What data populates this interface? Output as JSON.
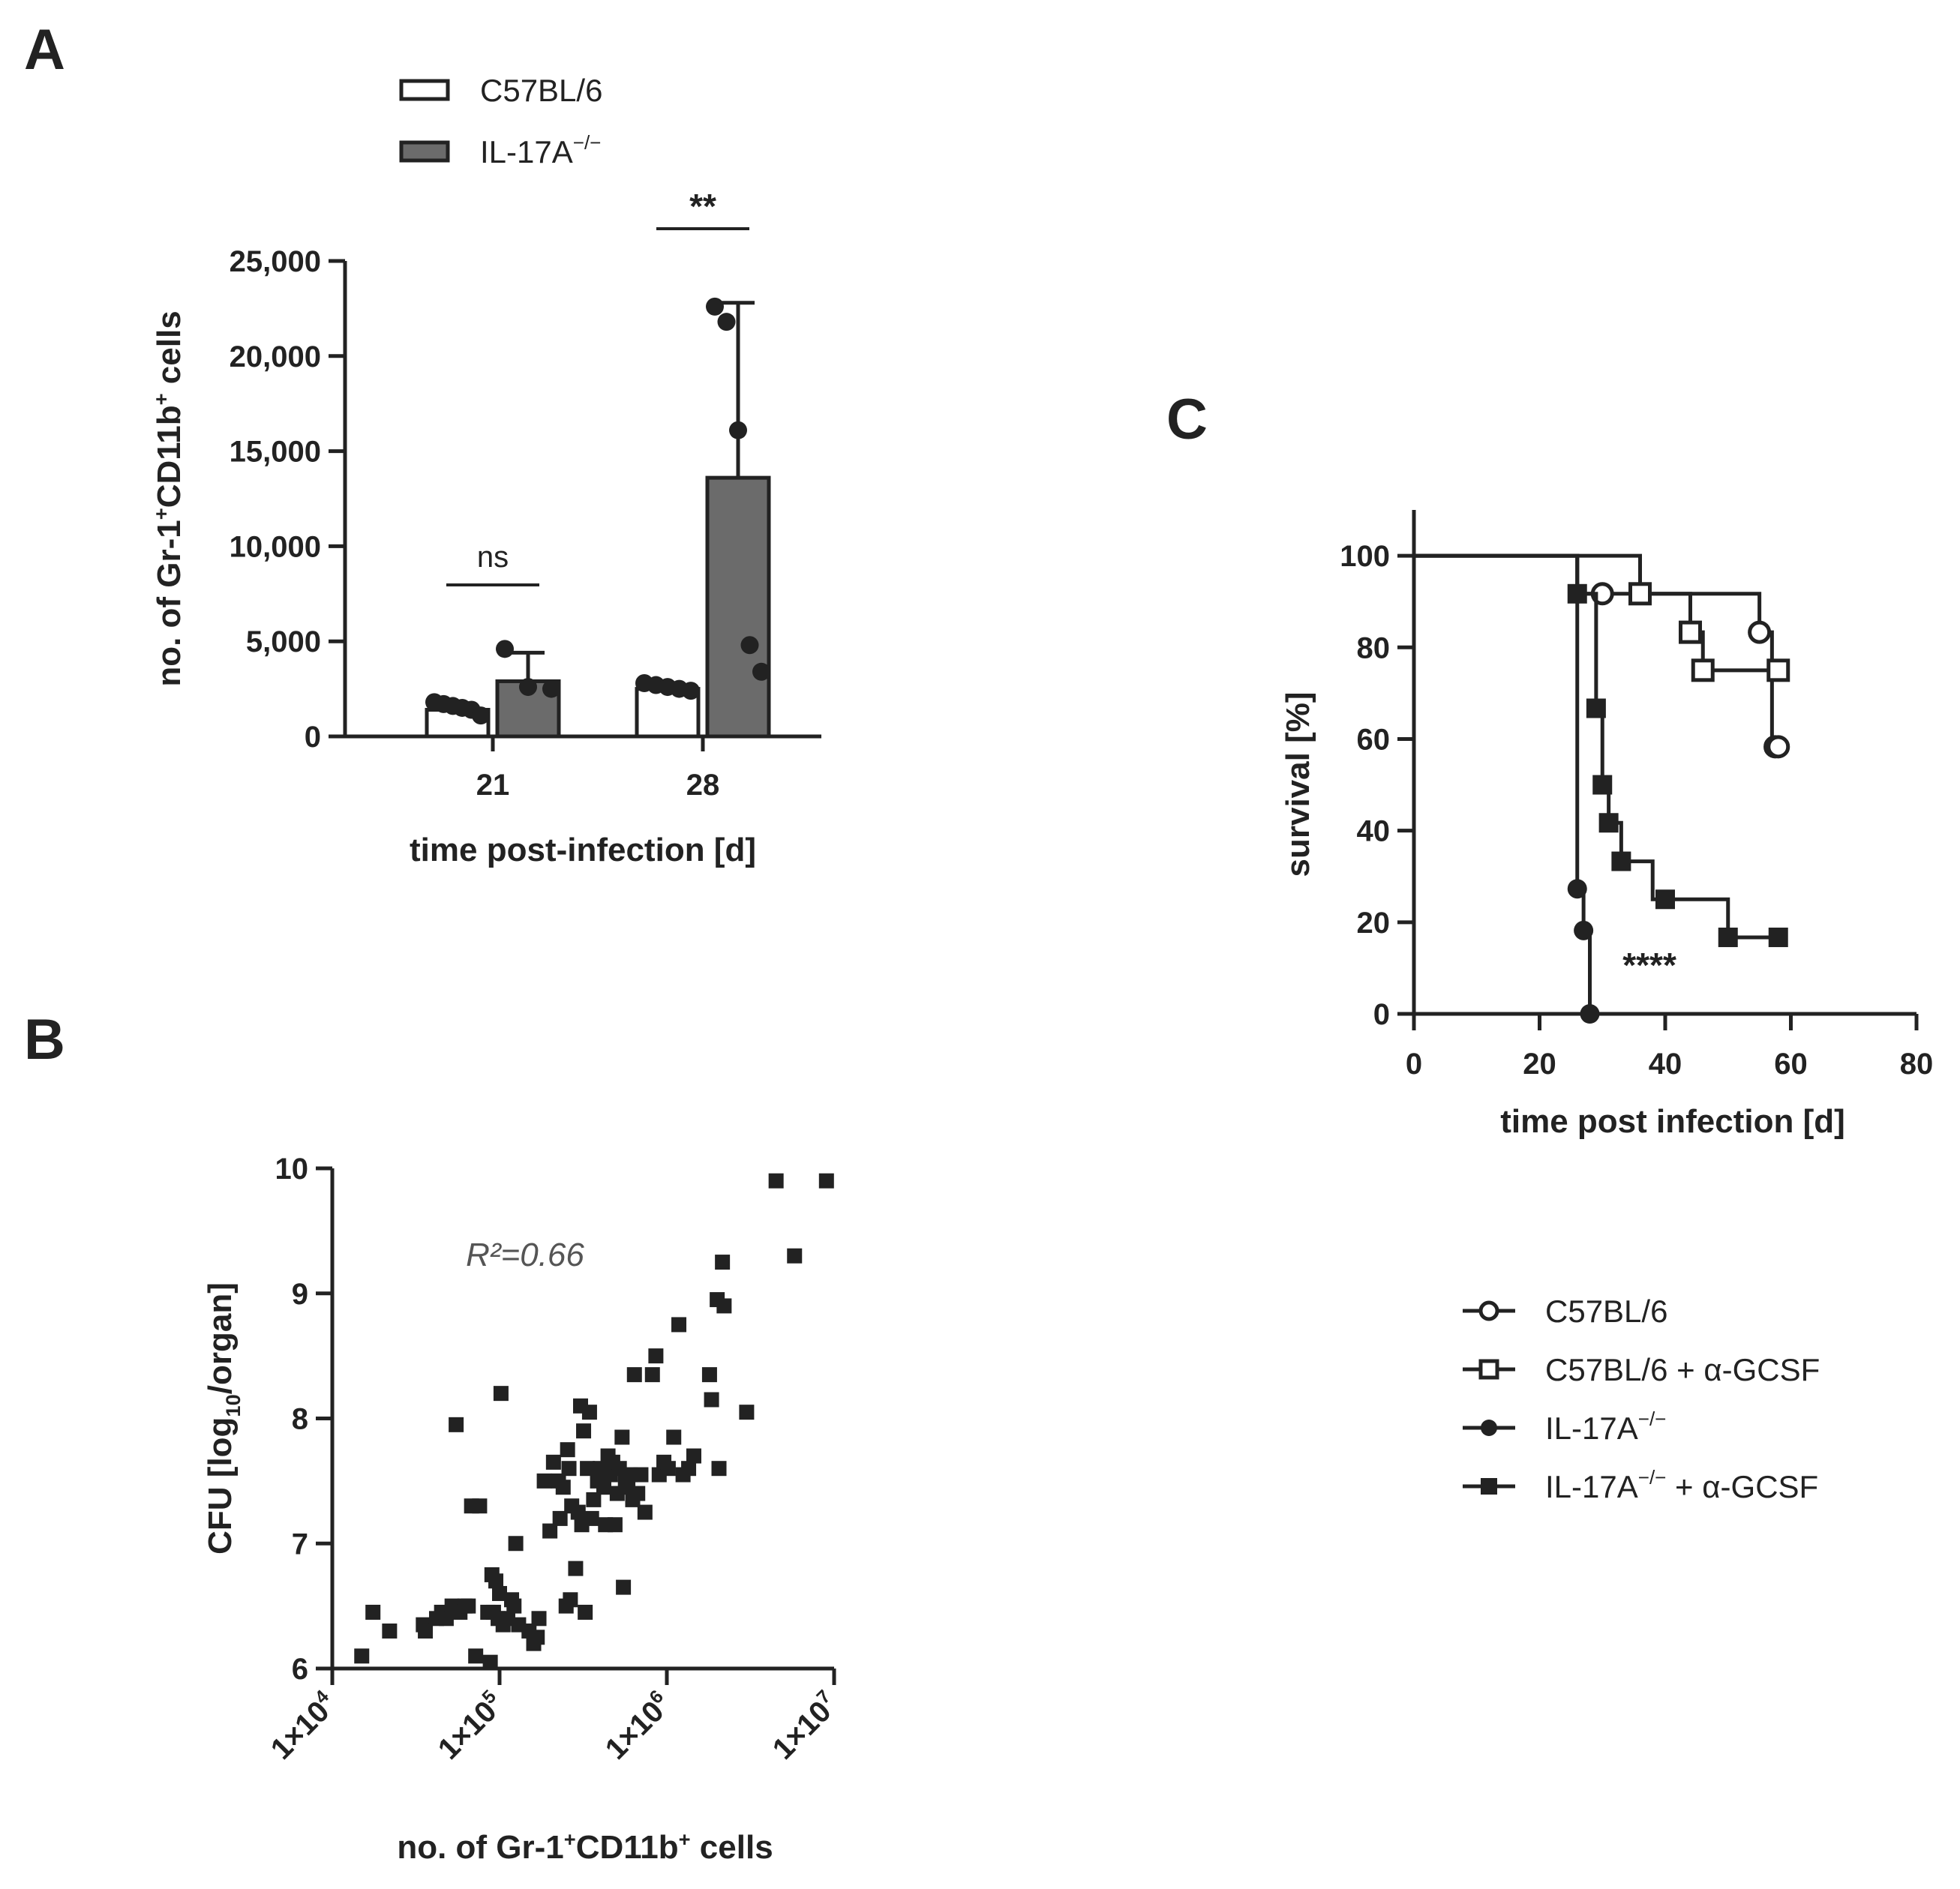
{
  "panels": {
    "A": {
      "label": "A"
    },
    "B": {
      "label": "B"
    },
    "C": {
      "label": "C"
    }
  },
  "chart_data": [
    {
      "id": "A",
      "type": "bar",
      "categories": [
        "21",
        "28"
      ],
      "xlabel": "time post-infection [d]",
      "ylabel_parts": [
        "no. of Gr-1",
        "+",
        "CD11b",
        "+",
        " cells"
      ],
      "ylim": [
        0,
        25000
      ],
      "yticks": [
        0,
        5000,
        10000,
        15000,
        20000,
        25000
      ],
      "ytick_labels": [
        "0",
        "5,000",
        "10,000",
        "15,000",
        "20,000",
        "25,000"
      ],
      "series": [
        {
          "name": "C57BL/6",
          "legend_main": "C57BL/6",
          "legend_sup": "",
          "fill": "#ffffff",
          "values": [
            1400,
            2500
          ],
          "sd": [
            350,
            200
          ],
          "points": [
            [
              1800,
              1700,
              1600,
              1500,
              1400,
              1100
            ],
            [
              2800,
              2700,
              2600,
              2500,
              2400
            ]
          ]
        },
        {
          "name": "IL-17A−/−",
          "legend_main": "IL-17A",
          "legend_sup": "−/−",
          "fill": "#6b6b6b",
          "values": [
            2900,
            13600
          ],
          "sd": [
            1500,
            9200
          ],
          "points": [
            [
              4600,
              2600,
              2500
            ],
            [
              22600,
              21800,
              16100,
              4800,
              3400
            ]
          ]
        }
      ],
      "annotations": [
        {
          "category": "21",
          "text": "ns"
        },
        {
          "category": "28",
          "text": "**"
        }
      ]
    },
    {
      "id": "B",
      "type": "scatter",
      "x_scale": "log",
      "xlim": [
        10000,
        10000000
      ],
      "xticks": [
        10000,
        100000,
        1000000,
        10000000
      ],
      "xtick_labels": [
        {
          "base": "1×10",
          "exp": "4"
        },
        {
          "base": "1×10",
          "exp": "5"
        },
        {
          "base": "1×10",
          "exp": "6"
        },
        {
          "base": "1×10",
          "exp": "7"
        }
      ],
      "ylim": [
        6,
        10
      ],
      "yticks": [
        6,
        7,
        8,
        9,
        10
      ],
      "ytick_labels": [
        "6",
        "7",
        "8",
        "9",
        "10"
      ],
      "xlabel_parts": [
        "no. of Gr-1",
        "+",
        "CD11b",
        "+",
        " cells"
      ],
      "ylabel_parts": [
        "CFU [log",
        "10",
        "/organ]"
      ],
      "annotation": "R²=0.66",
      "points": [
        [
          15000,
          6.1
        ],
        [
          17500,
          6.45
        ],
        [
          22000,
          6.3
        ],
        [
          35000,
          6.35
        ],
        [
          36000,
          6.3
        ],
        [
          42000,
          6.4
        ],
        [
          45000,
          6.45
        ],
        [
          48000,
          6.4
        ],
        [
          52000,
          6.5
        ],
        [
          55000,
          7.95
        ],
        [
          58000,
          6.45
        ],
        [
          62000,
          6.5
        ],
        [
          65000,
          6.5
        ],
        [
          68000,
          7.3
        ],
        [
          72000,
          6.1
        ],
        [
          76000,
          7.3
        ],
        [
          85000,
          6.45
        ],
        [
          88000,
          6.05
        ],
        [
          90000,
          6.75
        ],
        [
          92000,
          6.45
        ],
        [
          95000,
          6.7
        ],
        [
          98000,
          6.4
        ],
        [
          100000,
          6.6
        ],
        [
          102000,
          8.2
        ],
        [
          105000,
          6.35
        ],
        [
          112000,
          6.4
        ],
        [
          118000,
          6.55
        ],
        [
          122000,
          6.5
        ],
        [
          125000,
          7.0
        ],
        [
          130000,
          6.35
        ],
        [
          150000,
          6.3
        ],
        [
          160000,
          6.2
        ],
        [
          168000,
          6.25
        ],
        [
          172000,
          6.4
        ],
        [
          185000,
          7.5
        ],
        [
          200000,
          7.1
        ],
        [
          210000,
          7.65
        ],
        [
          225000,
          7.5
        ],
        [
          230000,
          7.2
        ],
        [
          240000,
          7.45
        ],
        [
          250000,
          6.5
        ],
        [
          255000,
          7.75
        ],
        [
          260000,
          7.6
        ],
        [
          265000,
          6.55
        ],
        [
          270000,
          7.3
        ],
        [
          285000,
          6.8
        ],
        [
          295000,
          7.25
        ],
        [
          305000,
          8.1
        ],
        [
          310000,
          7.15
        ],
        [
          318000,
          7.9
        ],
        [
          325000,
          6.45
        ],
        [
          335000,
          7.6
        ],
        [
          345000,
          8.05
        ],
        [
          355000,
          7.2
        ],
        [
          365000,
          7.35
        ],
        [
          385000,
          7.5
        ],
        [
          400000,
          7.6
        ],
        [
          420000,
          7.45
        ],
        [
          430000,
          7.15
        ],
        [
          445000,
          7.7
        ],
        [
          460000,
          7.55
        ],
        [
          475000,
          7.65
        ],
        [
          490000,
          7.15
        ],
        [
          505000,
          7.4
        ],
        [
          520000,
          7.6
        ],
        [
          540000,
          7.85
        ],
        [
          550000,
          6.65
        ],
        [
          565000,
          7.5
        ],
        [
          585000,
          7.45
        ],
        [
          605000,
          7.55
        ],
        [
          625000,
          7.35
        ],
        [
          640000,
          8.35
        ],
        [
          670000,
          7.4
        ],
        [
          700000,
          7.55
        ],
        [
          740000,
          7.25
        ],
        [
          820000,
          8.35
        ],
        [
          860000,
          8.5
        ],
        [
          900000,
          7.55
        ],
        [
          960000,
          7.65
        ],
        [
          1020000,
          7.6
        ],
        [
          1100000,
          7.85
        ],
        [
          1180000,
          8.75
        ],
        [
          1250000,
          7.55
        ],
        [
          1350000,
          7.6
        ],
        [
          1450000,
          7.7
        ],
        [
          1800000,
          8.35
        ],
        [
          1850000,
          8.15
        ],
        [
          2000000,
          8.95
        ],
        [
          2050000,
          7.6
        ],
        [
          2150000,
          9.25
        ],
        [
          2200000,
          8.9
        ],
        [
          3000000,
          8.05
        ],
        [
          4500000,
          9.9
        ],
        [
          5800000,
          9.3
        ],
        [
          9000000,
          9.9
        ]
      ]
    },
    {
      "id": "C",
      "type": "line",
      "subtype": "kaplan-meier",
      "xlim": [
        0,
        80
      ],
      "ylim": [
        0,
        110
      ],
      "xticks": [
        0,
        20,
        40,
        60,
        80
      ],
      "yticks": [
        0,
        20,
        40,
        60,
        80,
        100
      ],
      "xtick_labels": [
        "0",
        "20",
        "40",
        "60",
        "80"
      ],
      "ytick_labels": [
        "0",
        "20",
        "40",
        "60",
        "80",
        "100"
      ],
      "xlabel": "time post infection [d]",
      "ylabel": "survival [%]",
      "annotation": "****",
      "series": [
        {
          "name": "C57BL/6",
          "legend_main": "C57BL/6",
          "legend_sup": "",
          "legend_tail": "",
          "marker": "circle-open",
          "steps": [
            [
              0,
              100
            ],
            [
              26,
              100
            ],
            [
              26,
              91.7
            ],
            [
              55,
              91.7
            ],
            [
              55,
              83.3
            ],
            [
              57,
              83.3
            ],
            [
              57,
              58.3
            ],
            [
              58,
              58.3
            ]
          ],
          "markers": [
            [
              30,
              91.7
            ],
            [
              55,
              83.3
            ],
            [
              57.5,
              58.3
            ],
            [
              58,
              58.3
            ]
          ]
        },
        {
          "name": "C57BL/6 + α-GCSF",
          "legend_main": "C57BL/6 + α-GCSF",
          "legend_sup": "",
          "legend_tail": "",
          "marker": "square-open",
          "steps": [
            [
              0,
              100
            ],
            [
              36,
              100
            ],
            [
              36,
              91.7
            ],
            [
              44,
              91.7
            ],
            [
              44,
              83.3
            ],
            [
              46,
              83.3
            ],
            [
              46,
              75
            ],
            [
              58,
              75
            ]
          ],
          "markers": [
            [
              36,
              91.7
            ],
            [
              44,
              83.3
            ],
            [
              46,
              75
            ],
            [
              58,
              75
            ]
          ]
        },
        {
          "name": "IL-17A−/−",
          "legend_main": "IL-17A",
          "legend_sup": "−/−",
          "legend_tail": "",
          "marker": "circle-filled",
          "steps": [
            [
              0,
              100
            ],
            [
              26,
              100
            ],
            [
              26,
              27.3
            ],
            [
              27,
              27.3
            ],
            [
              27,
              18.2
            ],
            [
              28,
              18.2
            ],
            [
              28,
              0
            ]
          ],
          "markers": [
            [
              26,
              27.3
            ],
            [
              27,
              18.2
            ],
            [
              28,
              0
            ]
          ]
        },
        {
          "name": "IL-17A−/− + α-GCSF",
          "legend_main": "IL-17A",
          "legend_sup": "−/−",
          "legend_tail": " + α-GCSF",
          "marker": "square-filled",
          "steps": [
            [
              0,
              100
            ],
            [
              26,
              100
            ],
            [
              26,
              91.7
            ],
            [
              29,
              91.7
            ],
            [
              29,
              66.7
            ],
            [
              30,
              66.7
            ],
            [
              30,
              50
            ],
            [
              31,
              50
            ],
            [
              31,
              41.7
            ],
            [
              33,
              41.7
            ],
            [
              33,
              33.3
            ],
            [
              38,
              33.3
            ],
            [
              38,
              25
            ],
            [
              45,
              25
            ],
            [
              45,
              25
            ],
            [
              50,
              25
            ],
            [
              50,
              16.7
            ],
            [
              58,
              16.7
            ]
          ],
          "markers": [
            [
              26,
              91.7
            ],
            [
              29,
              66.7
            ],
            [
              30,
              50
            ],
            [
              31,
              41.7
            ],
            [
              33,
              33.3
            ],
            [
              40,
              25
            ],
            [
              50,
              16.7
            ],
            [
              58,
              16.7
            ]
          ]
        }
      ]
    }
  ]
}
